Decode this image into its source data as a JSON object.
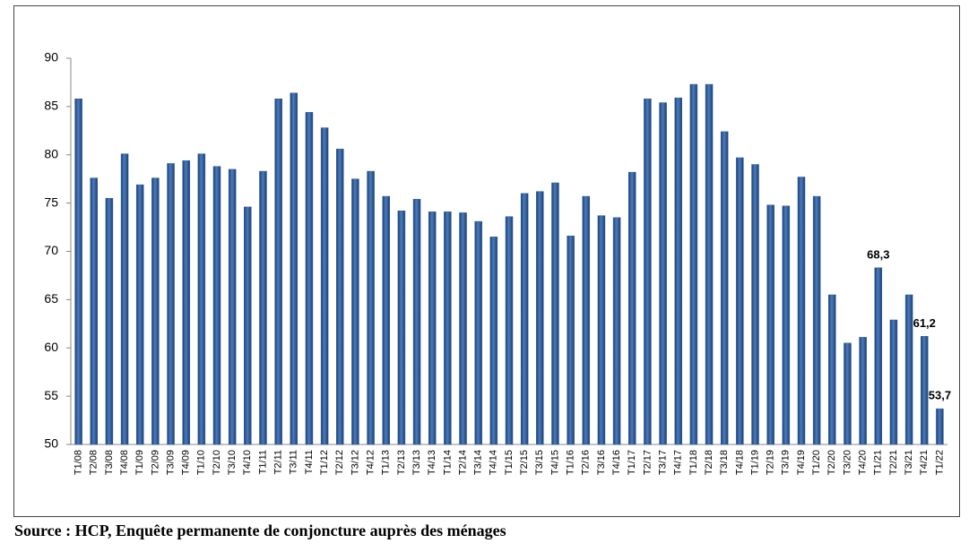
{
  "chart_data": {
    "type": "bar",
    "categories": [
      "T1/08",
      "T2/08",
      "T3/08",
      "T4/08",
      "T1/09",
      "T2/09",
      "T3/09",
      "T4/09",
      "T1/10",
      "T2/10",
      "T3/10",
      "T4/10",
      "T1/11",
      "T2/11",
      "T3/11",
      "T4/11",
      "T1/12",
      "T2/12",
      "T3/12",
      "T4/12",
      "T1/13",
      "T2/13",
      "T3/13",
      "T4/13",
      "T1/14",
      "T2/14",
      "T3/14",
      "T4/14",
      "T1/15",
      "T2/15",
      "T3/15",
      "T4/15",
      "T1/16",
      "T2/16",
      "T3/16",
      "T4/16",
      "T1/17",
      "T2/17",
      "T3/17",
      "T4/17",
      "T1/18",
      "T2/18",
      "T3/18",
      "T4/18",
      "T1/19",
      "T2/19",
      "T3/19",
      "T4/19",
      "T1/20",
      "T2/20",
      "T3/20",
      "T4/20",
      "T1/21",
      "T2/21",
      "T3/21",
      "T4/21",
      "T1/22"
    ],
    "values": [
      85.8,
      77.6,
      75.5,
      80.1,
      76.9,
      77.6,
      79.1,
      79.4,
      80.1,
      78.8,
      78.5,
      74.6,
      78.3,
      85.8,
      86.4,
      84.4,
      82.8,
      80.6,
      77.5,
      78.3,
      75.7,
      74.2,
      75.4,
      74.1,
      74.1,
      74.0,
      73.1,
      71.5,
      73.6,
      76.0,
      76.2,
      77.1,
      71.6,
      75.7,
      73.7,
      73.5,
      78.2,
      85.8,
      85.4,
      85.9,
      87.3,
      87.3,
      82.4,
      79.7,
      79.0,
      74.8,
      74.7,
      77.7,
      75.7,
      65.5,
      60.5,
      61.1,
      68.3,
      62.9,
      65.5,
      61.2,
      53.7
    ],
    "value_labels": [
      null,
      null,
      null,
      null,
      null,
      null,
      null,
      null,
      null,
      null,
      null,
      null,
      null,
      null,
      null,
      null,
      null,
      null,
      null,
      null,
      null,
      null,
      null,
      null,
      null,
      null,
      null,
      null,
      null,
      null,
      null,
      null,
      null,
      null,
      null,
      null,
      null,
      null,
      null,
      null,
      null,
      null,
      null,
      null,
      null,
      null,
      null,
      null,
      null,
      null,
      null,
      null,
      "68,3",
      null,
      null,
      "61,2",
      "53,7"
    ],
    "color": "#2f5f9f",
    "ylim": [
      50,
      90
    ],
    "yticks": [
      50,
      55,
      60,
      65,
      70,
      75,
      80,
      85,
      90
    ],
    "source": "Source : HCP, Enquête permanente de conjoncture auprès des ménages"
  }
}
